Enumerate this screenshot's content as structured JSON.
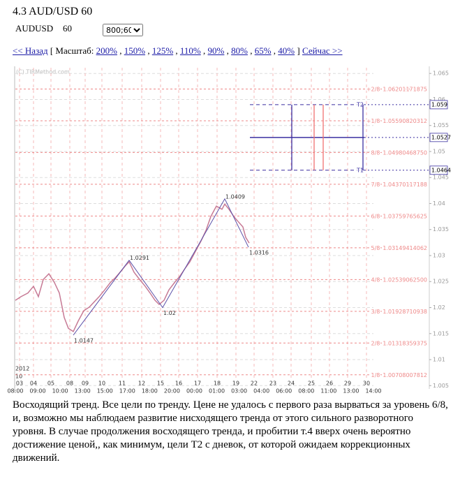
{
  "header": {
    "title": "4.3 AUD/USD 60",
    "symbol": "AUDUSD",
    "period": "60",
    "size_select": "800;600"
  },
  "nav": {
    "back": "<< Назад",
    "open": "[ Масштаб:",
    "scales": [
      "200%",
      "150%",
      "125%",
      "110%",
      "90%",
      "80%",
      "65%",
      "40%"
    ],
    "separator": ",",
    "close": "]",
    "forward": "Сейчас >>"
  },
  "chart_data": {
    "type": "line",
    "watermark": "(C) TIRMethod.com",
    "xlim": [
      0,
      513
    ],
    "ylim": [
      1.0045,
      1.0661
    ],
    "yticks": [
      1.005,
      1.01,
      1.015,
      1.02,
      1.025,
      1.03,
      1.035,
      1.04,
      1.045,
      1.05,
      1.055,
      1.06,
      1.065
    ],
    "xticks": [
      {
        "value": 6,
        "label": "03"
      },
      {
        "value": 26,
        "label": "04"
      },
      {
        "value": 51,
        "label": "05"
      },
      {
        "value": 78,
        "label": "08"
      },
      {
        "value": 100,
        "label": "09"
      },
      {
        "value": 124,
        "label": "10"
      },
      {
        "value": 153,
        "label": "11"
      },
      {
        "value": 181,
        "label": "12"
      },
      {
        "value": 208,
        "label": "15"
      },
      {
        "value": 234,
        "label": "16"
      },
      {
        "value": 261,
        "label": "17"
      },
      {
        "value": 289,
        "label": "18"
      },
      {
        "value": 316,
        "label": "19"
      },
      {
        "value": 342,
        "label": "22"
      },
      {
        "value": 369,
        "label": "23"
      },
      {
        "value": 395,
        "label": "24"
      },
      {
        "value": 424,
        "label": "25"
      },
      {
        "value": 450,
        "label": "26"
      },
      {
        "value": 476,
        "label": "29"
      },
      {
        "value": 503,
        "label": "30"
      }
    ],
    "time_labels": [
      "08:00",
      "09:00",
      "10:00",
      "13:00",
      "15:00",
      "17:00",
      "18:00",
      "20:00",
      "00:00",
      "01:00",
      "03:00",
      "04:00",
      "06:00",
      "08:00",
      "11:00",
      "13:00",
      "14:00"
    ],
    "year_label": "2012",
    "month_label": "10",
    "series": [
      {
        "color": "#c77a95",
        "x": [
          0,
          8,
          18,
          26,
          33,
          40,
          48,
          56,
          63,
          70,
          76,
          83,
          90,
          98,
          106,
          113,
          120,
          128,
          136,
          143,
          150,
          158,
          163,
          170,
          178,
          186,
          193,
          200,
          206,
          213,
          220,
          228,
          236,
          243,
          250,
          258,
          266,
          273,
          280,
          288,
          296,
          300,
          306,
          313,
          320,
          326,
          330,
          335
        ],
        "values": [
          1.0214,
          1.0221,
          1.0228,
          1.0241,
          1.0221,
          1.0254,
          1.0265,
          1.0248,
          1.0228,
          1.0181,
          1.016,
          1.0154,
          1.0174,
          1.0194,
          1.0201,
          1.0211,
          1.0221,
          1.0234,
          1.0248,
          1.0257,
          1.0268,
          1.0281,
          1.0288,
          1.0268,
          1.0254,
          1.0241,
          1.0228,
          1.0214,
          1.0206,
          1.0214,
          1.0234,
          1.0248,
          1.0261,
          1.0275,
          1.0288,
          1.0308,
          1.0328,
          1.0348,
          1.0375,
          1.0395,
          1.0389,
          1.0399,
          1.0389,
          1.0375,
          1.0364,
          1.0355,
          1.0335,
          1.0324
        ]
      }
    ],
    "zigzag": {
      "color": "#5a4fa8",
      "x": [
        83,
        163,
        211,
        300,
        334
      ],
      "values": [
        1.0147,
        1.0291,
        1.02,
        1.0409,
        1.0316
      ]
    },
    "levels": [
      {
        "name": "+2/8",
        "value": 1.06201171875
      },
      {
        "name": "+1/8",
        "value": {
          "value": 1.055908203125,
          "label": "1.05590820312"
        }
      },
      {
        "name": "8/8",
        "value": {
          "value": 1.0498046875,
          "label": "1.04980468750"
        }
      },
      {
        "name": "7/8",
        "value": {
          "value": 1.043701171875,
          "label": "1.04370117188"
        }
      },
      {
        "name": "6/8",
        "value": 1.03759765625
      },
      {
        "name": "5/8",
        "value": {
          "value": 1.031494140625,
          "label": "1.03149414062"
        }
      },
      {
        "name": "4/8",
        "value": {
          "value": 1.025390625,
          "label": "1.02539062500"
        }
      },
      {
        "name": "3/8",
        "value": {
          "value": 1.019287109375,
          "label": "1.01928710938"
        }
      },
      {
        "name": "2/8",
        "value": 1.01318359375
      },
      {
        "name": "1/8",
        "value": {
          "value": 1.007080078125,
          "label": "1.00708007812"
        }
      }
    ],
    "level_color": "#ee8888",
    "targets": {
      "color": "#3a2fa0",
      "red_color": "#f07070",
      "xrange": [
        336,
        500
      ],
      "blue_x": [
        396,
        498
      ],
      "red_x": [
        428,
        441
      ],
      "entry": 1.0527,
      "t2": {
        "name": "T2",
        "value": 1.059
      },
      "t1": {
        "name": "T1",
        "value": 1.0464
      }
    }
  },
  "text": "Восходящий тренд. Все цели по тренду. Цене не удалось с первого раза вырваться за уровень 6/8, и, возможно мы наблюдаем развитие нисходящего тренда от этого сильного разворотного уровня. В случае продолжения восходящего тренда, и пробитии т.4 вверх очень вероятно достижение ценой,, как минимум, цели Т2 с дневок, от которой ожидаем коррекционных движений."
}
